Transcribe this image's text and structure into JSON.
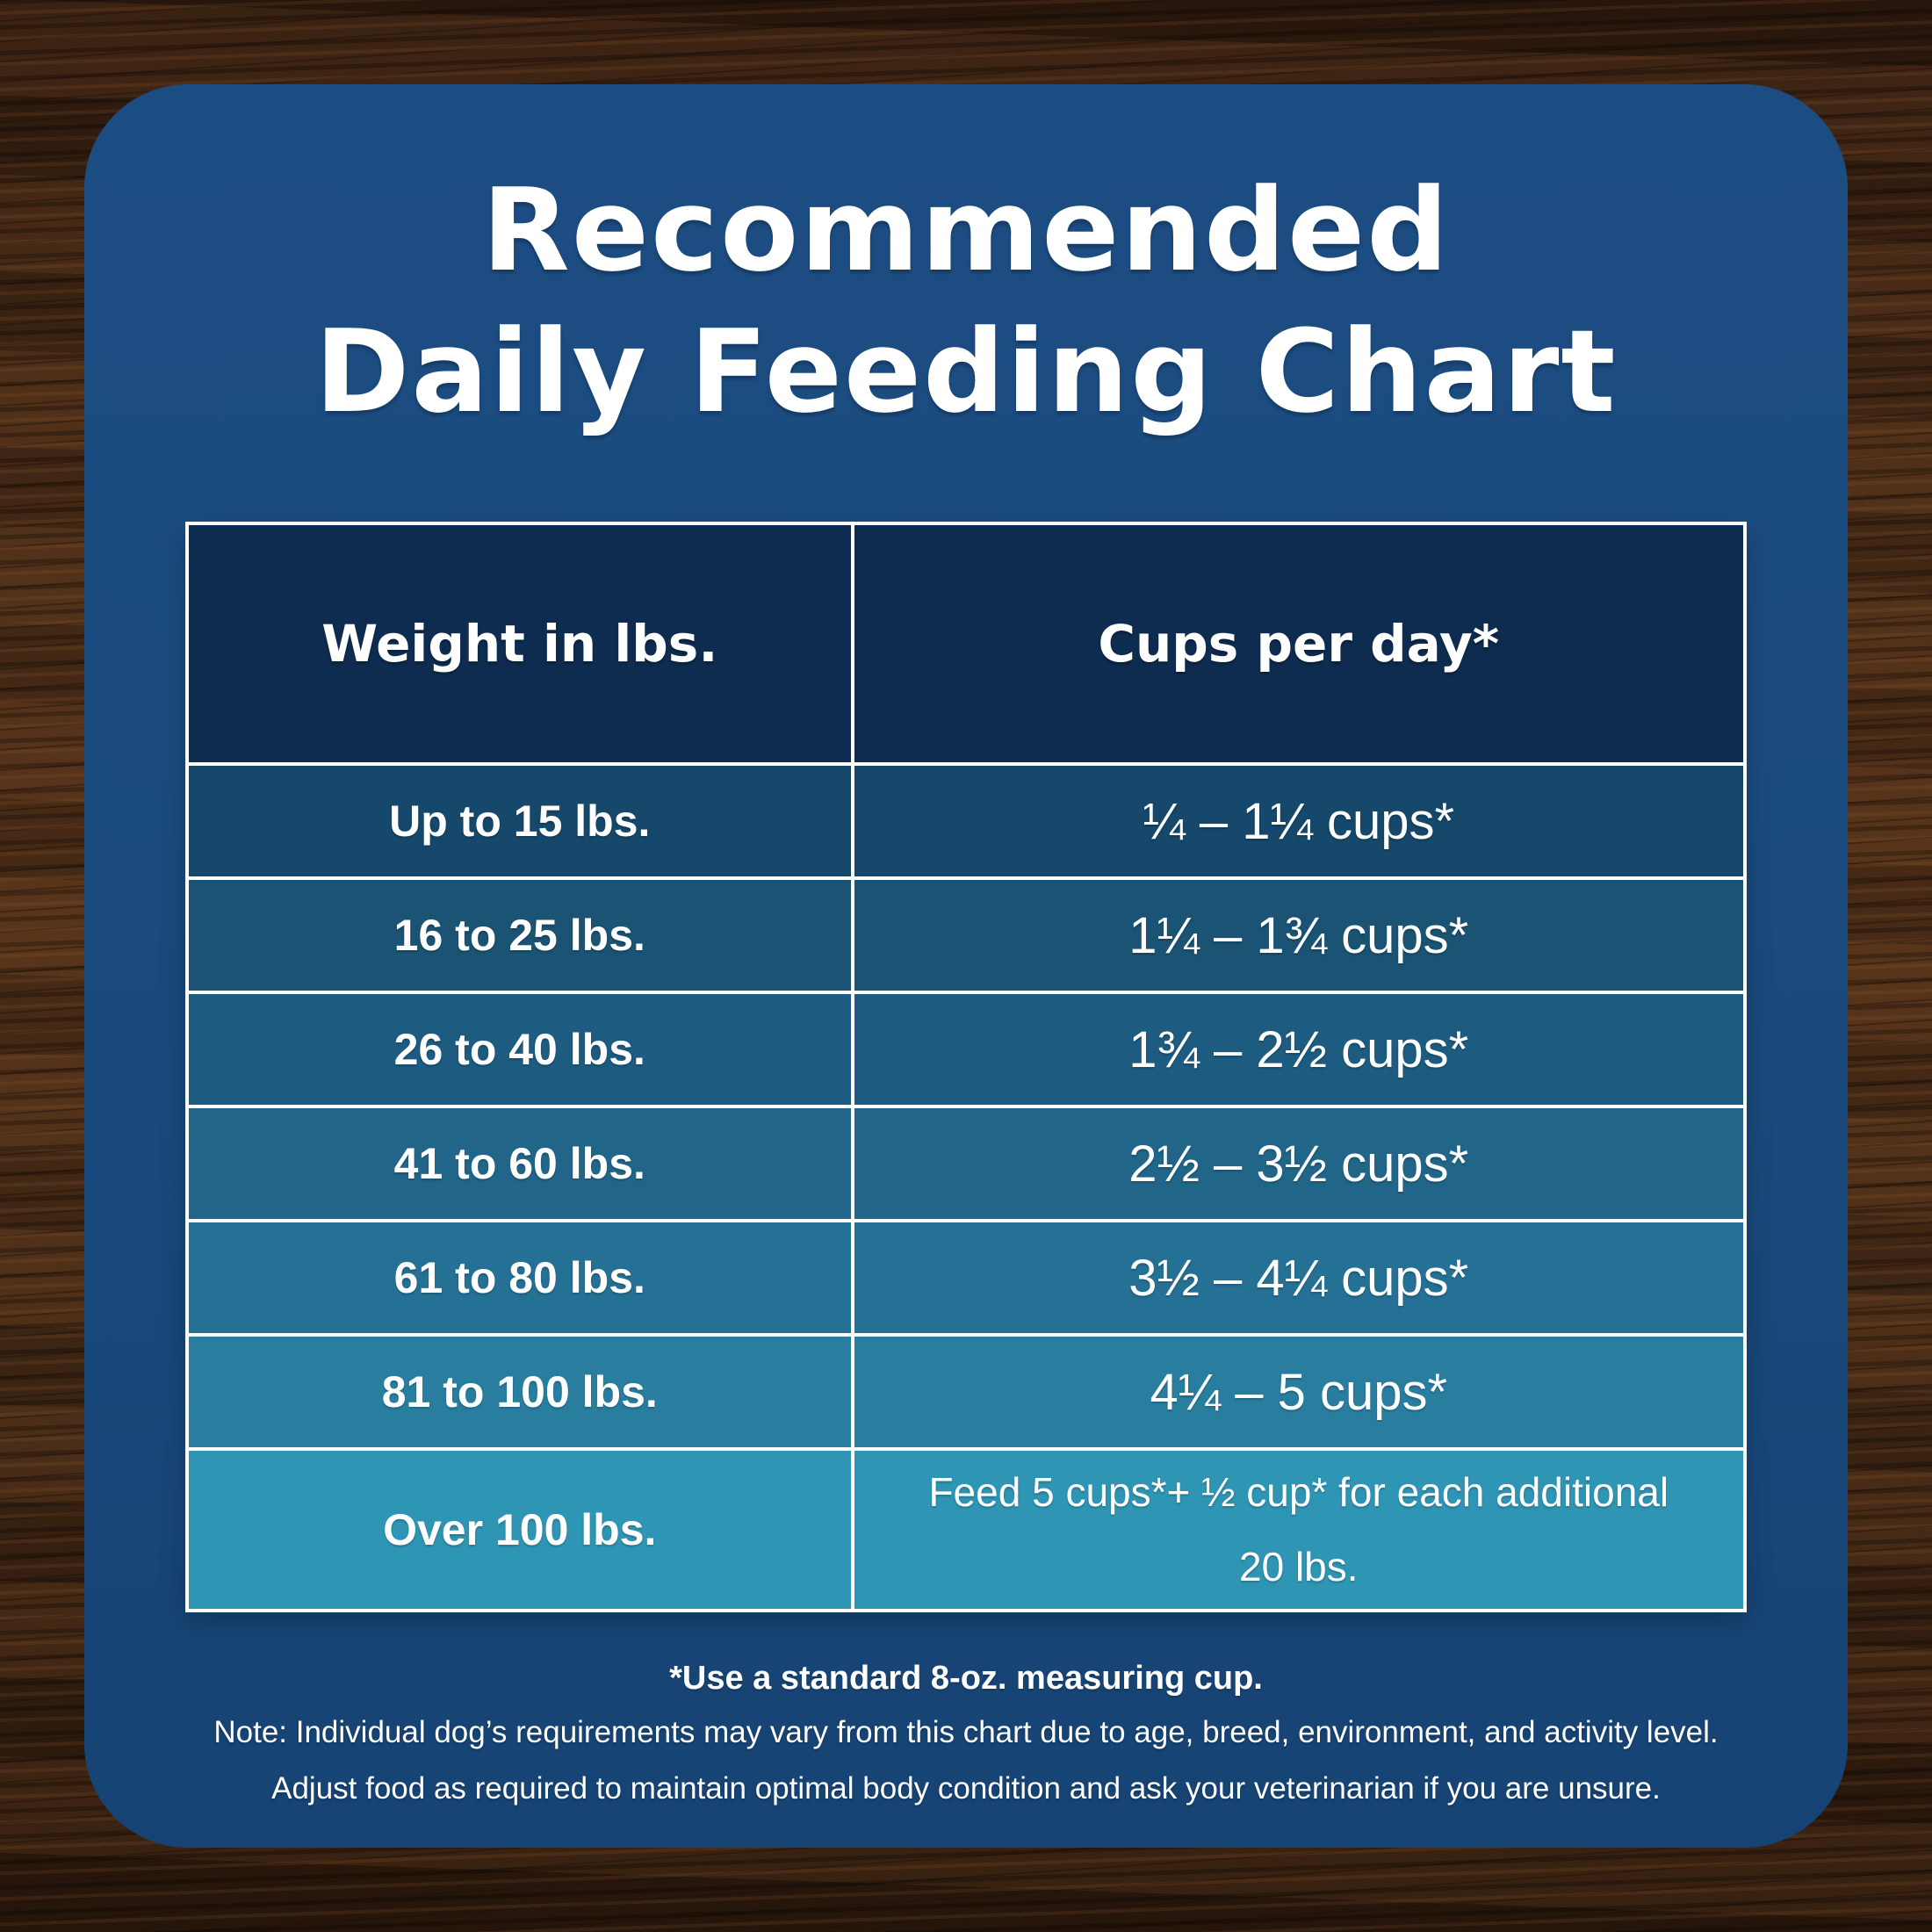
{
  "title": {
    "line1": "Recommended",
    "line2": "Daily Feeding Chart"
  },
  "table": {
    "header": {
      "weight": "Weight in lbs.",
      "cups": "Cups per day*"
    },
    "rows": [
      {
        "weight": "Up to 15 lbs.",
        "cups": "¼ – 1¼ cups*"
      },
      {
        "weight": "16 to 25 lbs.",
        "cups": "1¼ – 1¾  cups*"
      },
      {
        "weight": "26 to 40 lbs.",
        "cups": "1¾ – 2½ cups*"
      },
      {
        "weight": "41 to 60 lbs.",
        "cups": "2½ – 3½ cups*"
      },
      {
        "weight": "61 to 80 lbs.",
        "cups": "3½ – 4¼ cups*"
      },
      {
        "weight": "81 to 100 lbs.",
        "cups": "4¼ – 5 cups*"
      },
      {
        "weight": "Over 100 lbs.",
        "cups": "Feed 5 cups*+ ½ cup* for each additional 20 lbs."
      }
    ],
    "header_bg": "#0e2c50",
    "row_colors": [
      "#15486b",
      "#1a5374",
      "#1d5c80",
      "#216689",
      "#257195",
      "#297ea0",
      "#2f95b4"
    ]
  },
  "footnotes": {
    "measuring_cup": "*Use a standard 8-oz. measuring cup.",
    "note_line1": "Note: Individual dog’s requirements may vary from this chart due to age, breed, environment, and activity level.",
    "note_line2": "Adjust food as required to maintain optimal body condition and ask your veterinarian if you are unsure."
  },
  "colors": {
    "card_background": "#1a4a7d",
    "table_border": "#ffffff",
    "text": "#ffffff",
    "wood_background": "#42281a"
  },
  "chart_data": {
    "type": "table",
    "title": "Recommended Daily Feeding Chart",
    "columns": [
      "Weight in lbs.",
      "Cups per day*"
    ],
    "rows": [
      [
        "Up to 15 lbs.",
        "¼ – 1¼ cups*"
      ],
      [
        "16 to 25 lbs.",
        "1¼ – 1¾ cups*"
      ],
      [
        "26 to 40 lbs.",
        "1¾ – 2½ cups*"
      ],
      [
        "41 to 60 lbs.",
        "2½ – 3½ cups*"
      ],
      [
        "61 to 80 lbs.",
        "3½ – 4¼ cups*"
      ],
      [
        "81 to 100 lbs.",
        "4¼ – 5 cups*"
      ],
      [
        "Over 100 lbs.",
        "Feed 5 cups*+ ½ cup* for each additional 20 lbs."
      ]
    ],
    "footnote": "*Use a standard 8-oz. measuring cup."
  }
}
